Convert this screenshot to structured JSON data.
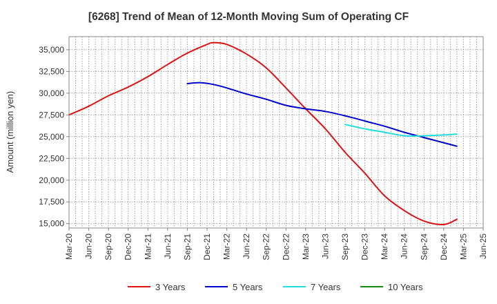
{
  "colors": {
    "series_3y": "#dd1111",
    "series_5y": "#0000cc",
    "series_7y": "#22dddd",
    "series_10y": "#118811",
    "grid": "#999999",
    "frame": "#888888"
  },
  "chart_data": {
    "type": "line",
    "title": "[6268]  Trend of Mean of 12-Month Moving Sum of Operating CF",
    "xlabel": "",
    "ylabel": "Amount (million yen)",
    "ylim": [
      14500,
      36500
    ],
    "y_ticks": [
      15000,
      17500,
      20000,
      22500,
      25000,
      27500,
      30000,
      32500,
      35000
    ],
    "y_tick_labels": [
      "15,000",
      "17,500",
      "20,000",
      "22,500",
      "25,000",
      "27,500",
      "30,000",
      "32,500",
      "35,000"
    ],
    "x_range_months": [
      0,
      63
    ],
    "x_ticks": [
      0,
      3,
      6,
      9,
      12,
      15,
      18,
      21,
      24,
      27,
      30,
      33,
      36,
      39,
      42,
      45,
      48,
      51,
      54,
      57,
      60,
      63
    ],
    "x_tick_labels": [
      "Mar-20",
      "Jun-20",
      "Sep-20",
      "Dec-20",
      "Mar-21",
      "Jun-21",
      "Sep-21",
      "Dec-21",
      "Mar-22",
      "Jun-22",
      "Sep-22",
      "Dec-22",
      "Mar-23",
      "Jun-23",
      "Sep-23",
      "Dec-23",
      "Mar-24",
      "Jun-24",
      "Sep-24",
      "Dec-24",
      "Mar-25",
      "Jun-25"
    ],
    "legend_position": "bottom",
    "series": [
      {
        "name": "3 Years",
        "color_key": "series_3y",
        "points": [
          [
            0,
            27500
          ],
          [
            3,
            28500
          ],
          [
            6,
            29700
          ],
          [
            9,
            30700
          ],
          [
            12,
            31900
          ],
          [
            15,
            33300
          ],
          [
            18,
            34600
          ],
          [
            21,
            35600
          ],
          [
            22,
            35800
          ],
          [
            24,
            35600
          ],
          [
            27,
            34500
          ],
          [
            30,
            32900
          ],
          [
            33,
            30600
          ],
          [
            36,
            28200
          ],
          [
            39,
            25900
          ],
          [
            42,
            23200
          ],
          [
            45,
            20800
          ],
          [
            48,
            18200
          ],
          [
            51,
            16500
          ],
          [
            54,
            15300
          ],
          [
            57,
            14900
          ],
          [
            59,
            15500
          ]
        ]
      },
      {
        "name": "5 Years",
        "color_key": "series_5y",
        "points": [
          [
            18,
            31100
          ],
          [
            20,
            31200
          ],
          [
            22,
            31000
          ],
          [
            24,
            30600
          ],
          [
            27,
            29900
          ],
          [
            30,
            29300
          ],
          [
            33,
            28600
          ],
          [
            36,
            28200
          ],
          [
            39,
            27900
          ],
          [
            42,
            27400
          ],
          [
            45,
            26800
          ],
          [
            48,
            26200
          ],
          [
            51,
            25500
          ],
          [
            54,
            24900
          ],
          [
            57,
            24300
          ],
          [
            59,
            23900
          ]
        ]
      },
      {
        "name": "7 Years",
        "color_key": "series_7y",
        "points": [
          [
            42,
            26400
          ],
          [
            45,
            25900
          ],
          [
            48,
            25500
          ],
          [
            51,
            25100
          ],
          [
            54,
            25100
          ],
          [
            57,
            25200
          ],
          [
            59,
            25300
          ]
        ]
      },
      {
        "name": "10 Years",
        "color_key": "series_10y",
        "points": []
      }
    ]
  }
}
